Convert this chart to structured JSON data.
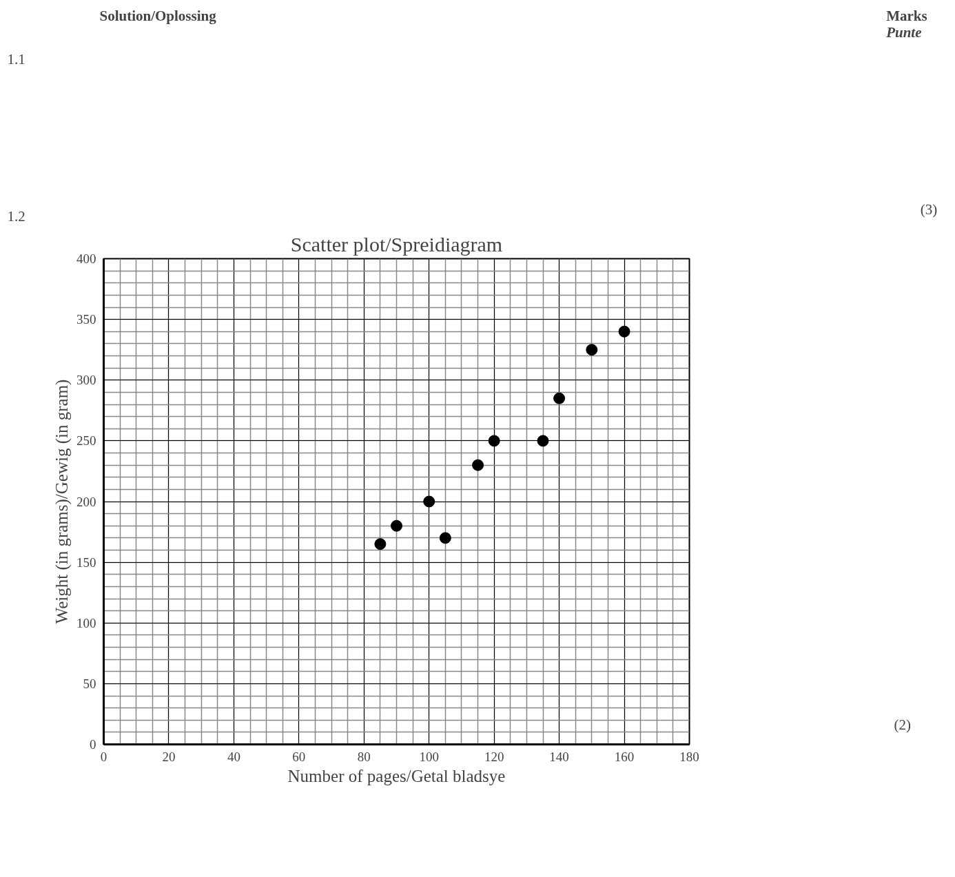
{
  "chart_data": {
    "type": "scatter",
    "title": "Scatter plot/Spreidiagram",
    "xlabel": "Number of pages/Getal bladsye",
    "ylabel": "Weight (in grams)/Gewig (in gram)",
    "x": [
      85,
      90,
      100,
      105,
      115,
      120,
      135,
      140,
      150,
      160
    ],
    "series": [
      {
        "color": "#000000",
        "values": [
          165,
          180,
          200,
          170,
          230,
          250,
          250,
          285,
          325,
          340
        ]
      }
    ],
    "xlim": [
      0,
      180
    ],
    "xticks": [
      0,
      20,
      40,
      60,
      80,
      100,
      120,
      140,
      160,
      180
    ],
    "ylim": [
      0,
      400
    ],
    "yticks": [
      0,
      50,
      100,
      150,
      200,
      250,
      300,
      350,
      400
    ],
    "grid": true,
    "marker": "circle",
    "annotations": [
      "Solution/Oplossing",
      "Marks",
      "Punte",
      "1.1",
      "(3)",
      "1.2",
      "(2)"
    ]
  }
}
